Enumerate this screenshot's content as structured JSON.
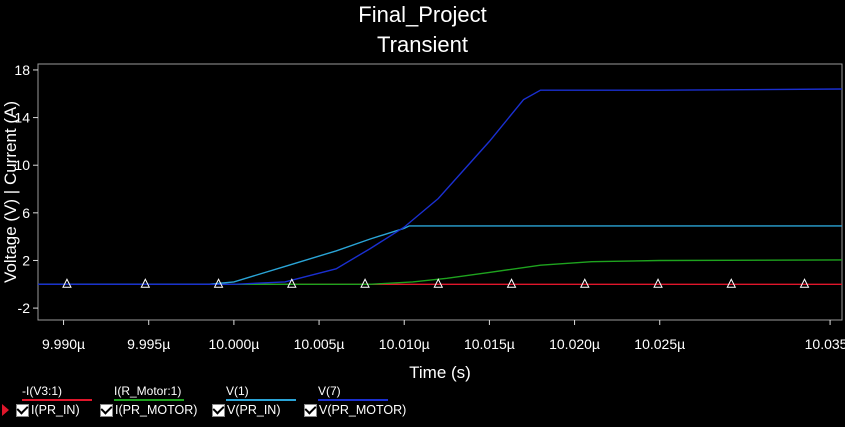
{
  "title_line1": "Final_Project",
  "title_line2": "Transient",
  "chart_data": {
    "type": "line",
    "title": "Final_Project Transient",
    "xlabel": "Time (s)",
    "ylabel": "Voltage (V) | Current (A)",
    "xlim": [
      9.9885,
      10.0357
    ],
    "ylim": [
      -3,
      18.5
    ],
    "x_tick_values": [
      9.99,
      9.995,
      10.0,
      10.005,
      10.01,
      10.015,
      10.02,
      10.025,
      10.035
    ],
    "x_tick_labels": [
      "9.990µ",
      "9.995µ",
      "10.000µ",
      "10.005µ",
      "10.010µ",
      "10.015µ",
      "10.020µ",
      "10.025µ",
      "10.035µ"
    ],
    "y_tick_values": [
      18,
      14,
      10,
      6,
      2,
      -2
    ],
    "y_tick_labels": [
      "18",
      "14",
      "10",
      "6",
      "2",
      "-2"
    ],
    "marker_x": [
      9.9902,
      9.9948,
      9.9991,
      10.0034,
      10.0077,
      10.012,
      10.0163,
      10.0206,
      10.0249,
      10.0292,
      10.0335
    ],
    "series": [
      {
        "name": "-I(V3:1)",
        "trace_label": "I(PR_IN)",
        "color": "#e0162b",
        "x": [
          9.9885,
          10.0357
        ],
        "y": [
          0,
          0
        ]
      },
      {
        "name": "I(R_Motor:1)",
        "trace_label": "I(PR_MOTOR)",
        "color": "#1ea31e",
        "x": [
          9.9885,
          10.008,
          10.0105,
          10.0125,
          10.015,
          10.018,
          10.021,
          10.025,
          10.0357
        ],
        "y": [
          0,
          0,
          0.2,
          0.5,
          1.0,
          1.6,
          1.9,
          2.0,
          2.05
        ]
      },
      {
        "name": "V(1)",
        "trace_label": "V(PR_IN)",
        "color": "#2aa4d6",
        "x": [
          9.9885,
          9.9985,
          10.0,
          10.003,
          10.006,
          10.008,
          10.01,
          10.0103,
          10.0357
        ],
        "y": [
          0,
          0,
          0.2,
          1.5,
          2.8,
          3.8,
          4.7,
          4.9,
          4.9
        ]
      },
      {
        "name": "V(7)",
        "trace_label": "V(PR_MOTOR)",
        "color": "#1a2fd0",
        "x": [
          9.9885,
          10.0,
          10.003,
          10.006,
          10.008,
          10.01,
          10.012,
          10.015,
          10.017,
          10.018,
          10.025,
          10.0357
        ],
        "y": [
          0,
          0,
          0.2,
          1.3,
          3.0,
          4.8,
          7.2,
          12.0,
          15.5,
          16.3,
          16.3,
          16.4
        ]
      }
    ]
  }
}
